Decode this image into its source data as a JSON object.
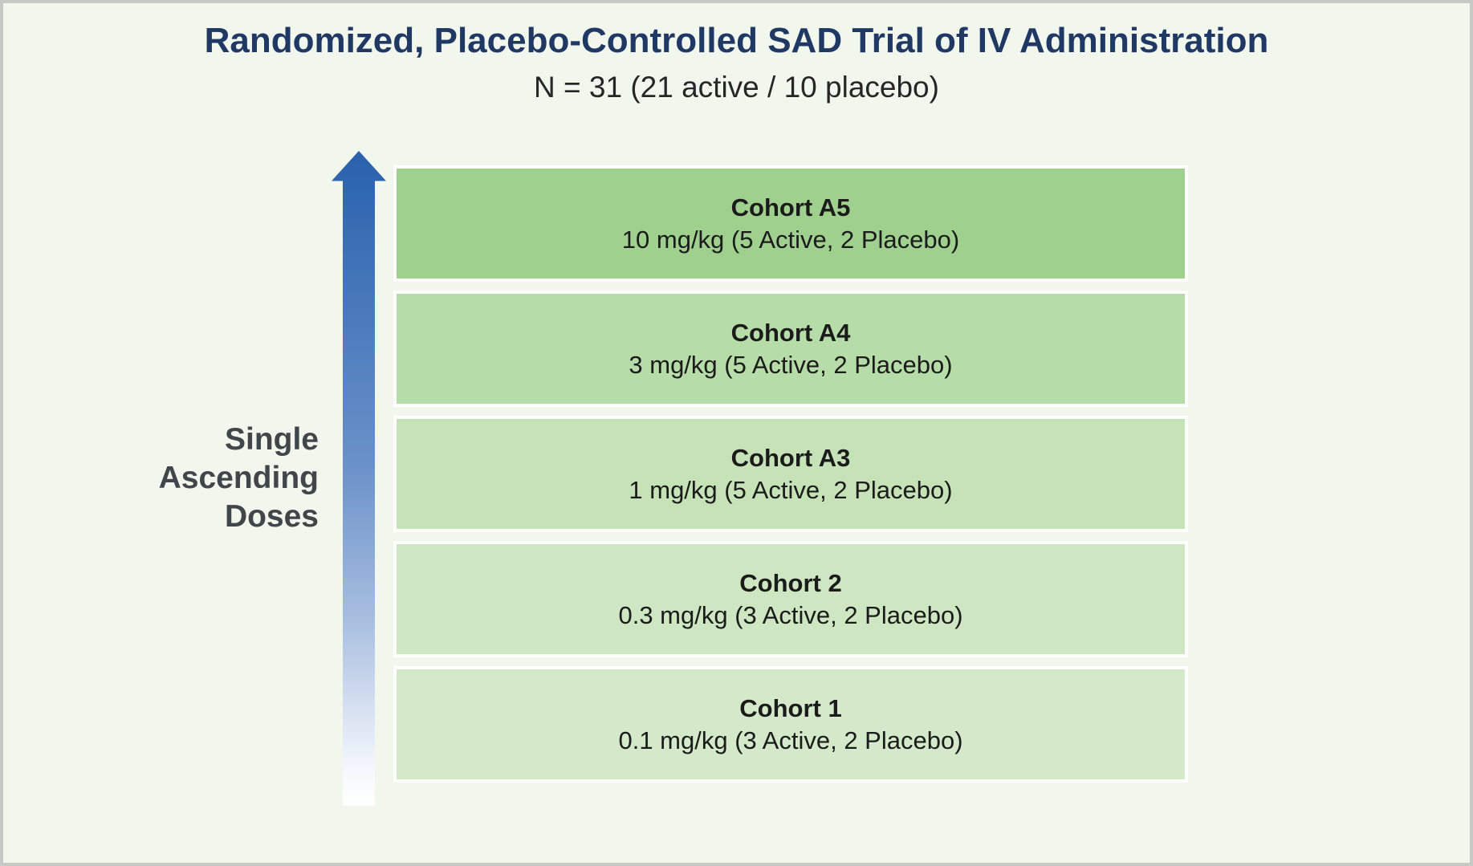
{
  "header": {
    "title": "Randomized, Placebo-Controlled SAD Trial of IV Administration",
    "subtitle": "N = 31 (21 active / 10 placebo)"
  },
  "axis_label": {
    "lines": [
      "Single",
      "Ascending",
      "Doses"
    ]
  },
  "cohorts": [
    {
      "name": "Cohort A5",
      "dose": "10 mg/kg (5 Active, 2 Placebo)",
      "color": "#9fd08e"
    },
    {
      "name": "Cohort A4",
      "dose": "3 mg/kg (5 Active, 2 Placebo)",
      "color": "#b6dca8"
    },
    {
      "name": "Cohort A3",
      "dose": "1 mg/kg (5 Active, 2 Placebo)",
      "color": "#c6e3b8"
    },
    {
      "name": "Cohort 2",
      "dose": "0.3 mg/kg (3 Active, 2 Placebo)",
      "color": "#cee7c2"
    },
    {
      "name": "Cohort 1",
      "dose": "0.1 mg/kg (3 Active, 2 Placebo)",
      "color": "#d4e9ca"
    }
  ],
  "colors": {
    "background": "#f2f7ee",
    "frame_border": "#c6cac5",
    "title_text": "#1f3864",
    "subtitle_text": "#262626",
    "side_label_text": "#40464a",
    "box_text": "#1b1b1b",
    "arrow_blue_top": "#2c61ab",
    "arrow_fade_bottom": "#ffffff",
    "box_outline": "#ffffff"
  }
}
